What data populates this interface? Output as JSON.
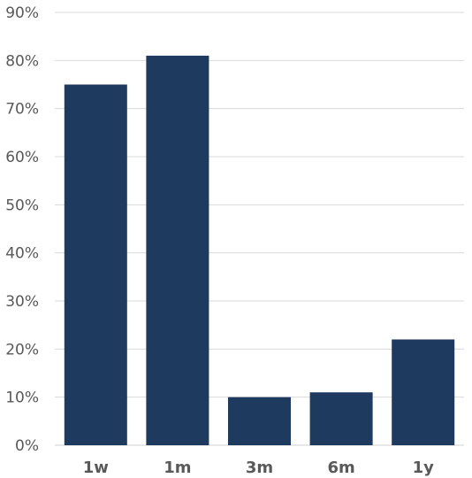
{
  "chart_data": {
    "type": "bar",
    "categories": [
      "1w",
      "1m",
      "3m",
      "6m",
      "1y"
    ],
    "values": [
      75,
      81,
      10,
      11,
      22
    ],
    "ylim": [
      0,
      90
    ],
    "ytick_step": 10,
    "ytick_format": "percent",
    "grid": true,
    "legend": "none",
    "bar_color": "#1f3a5f",
    "title": "",
    "xlabel": "",
    "ylabel": ""
  }
}
